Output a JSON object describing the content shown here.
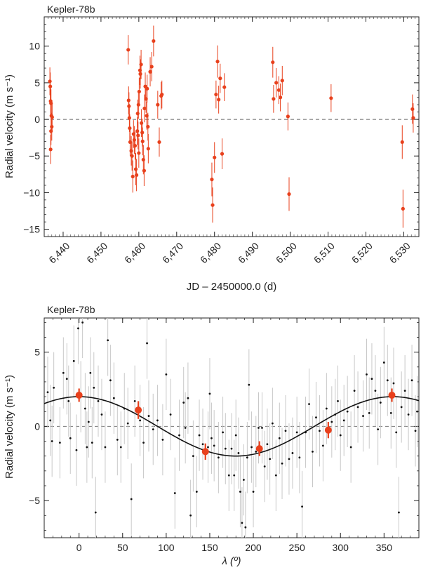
{
  "chart_data": [
    {
      "type": "scatter",
      "title": "Kepler-78b",
      "xlabel": "JD – 2450000.0 (d)",
      "ylabel": "Radial velocity (m s⁻¹)",
      "xlim": [
        6435,
        6534
      ],
      "ylim": [
        -16,
        14
      ],
      "xticks": [
        6440,
        6450,
        6460,
        6470,
        6480,
        6490,
        6500,
        6510,
        6520,
        6530
      ],
      "xtick_labels": [
        "6,440",
        "6,450",
        "6,460",
        "6,470",
        "6,480",
        "6,490",
        "6,500",
        "6,510",
        "6,520",
        "6,530"
      ],
      "yticks": [
        -15,
        -10,
        -5,
        0,
        5,
        10
      ],
      "ytick_labels": [
        "−15",
        "−10",
        "−5",
        "0",
        "5",
        "10"
      ],
      "zero_line": true,
      "marker_color": "#e8401c",
      "series": [
        {
          "name": "Radial velocity",
          "points": [
            [
              6436.5,
              5.2,
              1.9
            ],
            [
              6436.6,
              4.5,
              1.9
            ],
            [
              6436.7,
              2.5,
              1.9
            ],
            [
              6436.8,
              2.2,
              1.9
            ],
            [
              6436.9,
              0.5,
              1.9
            ],
            [
              6437.0,
              -1.0,
              1.9
            ],
            [
              6436.8,
              -1.6,
              1.9
            ],
            [
              6436.7,
              -4.1,
              2.0
            ],
            [
              6437.1,
              0.3,
              1.9
            ],
            [
              6457.2,
              9.5,
              2.0
            ],
            [
              6457.3,
              2.6,
              1.9
            ],
            [
              6457.4,
              1.8,
              1.9
            ],
            [
              6457.5,
              0.2,
              1.9
            ],
            [
              6457.6,
              -1.2,
              1.9
            ],
            [
              6457.7,
              -3.1,
              1.9
            ],
            [
              6458.0,
              -4.3,
              2.0
            ],
            [
              6458.2,
              -5.0,
              2.0
            ],
            [
              6458.4,
              -7.8,
              2.2
            ],
            [
              6458.6,
              -2.0,
              1.9
            ],
            [
              6458.8,
              -2.8,
              1.9
            ],
            [
              6459.0,
              -3.6,
              1.9
            ],
            [
              6459.2,
              -6.8,
              2.2
            ],
            [
              6459.4,
              -7.6,
              2.2
            ],
            [
              6459.6,
              -1.6,
              1.9
            ],
            [
              6459.8,
              -2.2,
              1.9
            ],
            [
              6460.0,
              -4.6,
              2.0
            ],
            [
              6459.7,
              0.8,
              1.9
            ],
            [
              6459.9,
              2.0,
              1.9
            ],
            [
              6460.1,
              3.8,
              1.9
            ],
            [
              6460.3,
              6.7,
              2.0
            ],
            [
              6460.4,
              6.2,
              2.0
            ],
            [
              6460.6,
              7.5,
              2.0
            ],
            [
              6460.7,
              -0.5,
              1.9
            ],
            [
              6460.9,
              -1.8,
              1.9
            ],
            [
              6461.0,
              -3.0,
              1.9
            ],
            [
              6461.2,
              -5.5,
              2.0
            ],
            [
              6461.4,
              -7.0,
              2.1
            ],
            [
              6461.5,
              1.5,
              1.9
            ],
            [
              6461.7,
              4.5,
              1.9
            ],
            [
              6461.9,
              2.8,
              1.9
            ],
            [
              6462.1,
              0.5,
              1.9
            ],
            [
              6462.2,
              4.2,
              1.9
            ],
            [
              6462.4,
              -1.0,
              1.9
            ],
            [
              6462.5,
              -4.0,
              2.0
            ],
            [
              6463.0,
              6.5,
              2.0
            ],
            [
              6463.4,
              7.2,
              2.0
            ],
            [
              6463.9,
              10.7,
              2.1
            ],
            [
              6465.0,
              2.0,
              1.9
            ],
            [
              6465.4,
              -3.1,
              2.0
            ],
            [
              6465.9,
              3.2,
              1.9
            ],
            [
              6466.1,
              3.4,
              1.9
            ],
            [
              6479.3,
              -8.2,
              2.3
            ],
            [
              6479.5,
              -11.7,
              2.4
            ],
            [
              6480.0,
              -5.2,
              2.1
            ],
            [
              6480.4,
              3.4,
              1.9
            ],
            [
              6480.8,
              7.9,
              2.2
            ],
            [
              6481.1,
              2.7,
              1.9
            ],
            [
              6481.5,
              5.6,
              2.0
            ],
            [
              6482.0,
              -4.7,
              2.1
            ],
            [
              6482.6,
              4.4,
              1.9
            ],
            [
              6495.4,
              7.8,
              2.1
            ],
            [
              6495.6,
              2.8,
              1.9
            ],
            [
              6496.3,
              5.0,
              2.0
            ],
            [
              6497.0,
              4.0,
              1.9
            ],
            [
              6497.4,
              3.0,
              1.9
            ],
            [
              6497.9,
              5.3,
              2.0
            ],
            [
              6499.4,
              0.4,
              1.9
            ],
            [
              6499.7,
              -10.2,
              2.3
            ],
            [
              6510.8,
              2.9,
              1.9
            ],
            [
              6529.6,
              -3.1,
              2.3
            ],
            [
              6529.8,
              -12.2,
              2.6
            ],
            [
              6532.3,
              1.4,
              2.0
            ],
            [
              6532.5,
              0.2,
              2.0
            ]
          ]
        }
      ]
    },
    {
      "type": "scatter",
      "title": "Kepler-78b",
      "xlabel": "λ (º)",
      "ylabel": "Radial velocity (m s⁻¹)",
      "xlim": [
        -40,
        390
      ],
      "ylim": [
        -7.5,
        7.3
      ],
      "xticks": [
        0,
        50,
        100,
        150,
        200,
        250,
        300,
        350
      ],
      "xtick_labels": [
        "0",
        "50",
        "100",
        "150",
        "200",
        "250",
        "300",
        "350"
      ],
      "yticks": [
        -5,
        0,
        5
      ],
      "ytick_labels": [
        "−5",
        "0",
        "5"
      ],
      "zero_line": true,
      "model": {
        "type": "sine",
        "amplitude": 2.0,
        "phase_deg": 0
      },
      "binned_color": "#e8401c",
      "binned": [
        [
          0,
          2.1,
          0.45
        ],
        [
          68,
          1.1,
          0.6
        ],
        [
          145,
          -1.7,
          0.55
        ],
        [
          207,
          -1.5,
          0.5
        ],
        [
          286,
          -0.25,
          0.55
        ],
        [
          359,
          2.1,
          0.45
        ]
      ],
      "individual": [
        [
          -36,
          2.3
        ],
        [
          -33,
          0.4
        ],
        [
          -31,
          -1.0
        ],
        [
          -29,
          2.6
        ],
        [
          -22,
          -1.1
        ],
        [
          -18,
          3.6
        ],
        [
          -14,
          3.2
        ],
        [
          -12,
          1.7
        ],
        [
          -10,
          -0.8
        ],
        [
          -6,
          4.4
        ],
        [
          -3,
          -1.6
        ],
        [
          -1,
          6.6
        ],
        [
          2,
          2.0
        ],
        [
          4,
          7.0
        ],
        [
          7,
          1.2
        ],
        [
          9,
          -1.4
        ],
        [
          11,
          0.3
        ],
        [
          13,
          3.6
        ],
        [
          15,
          -1.1
        ],
        [
          17,
          2.6
        ],
        [
          19,
          -5.8
        ],
        [
          22,
          1.7
        ],
        [
          26,
          0.8
        ],
        [
          30,
          -1.4
        ],
        [
          33,
          5.8
        ],
        [
          36,
          3.1
        ],
        [
          40,
          1.9
        ],
        [
          44,
          -0.9
        ],
        [
          48,
          -1.4
        ],
        [
          52,
          1.2
        ],
        [
          56,
          0.2
        ],
        [
          60,
          -4.9
        ],
        [
          64,
          1.7
        ],
        [
          70,
          0.4
        ],
        [
          74,
          -1.1
        ],
        [
          78,
          5.6
        ],
        [
          80,
          0.7
        ],
        [
          85,
          -0.2
        ],
        [
          90,
          0.4
        ],
        [
          96,
          -0.9
        ],
        [
          100,
          3.5
        ],
        [
          105,
          0.8
        ],
        [
          110,
          -4.5
        ],
        [
          115,
          -0.6
        ],
        [
          120,
          1.6
        ],
        [
          122,
          -0.1
        ],
        [
          125,
          1.9
        ],
        [
          128,
          -6.0
        ],
        [
          131,
          -2.0
        ],
        [
          135,
          -4.4
        ],
        [
          138,
          -0.6
        ],
        [
          142,
          -1.2
        ],
        [
          148,
          -1.4
        ],
        [
          150,
          2.2
        ],
        [
          152,
          -0.8
        ],
        [
          155,
          -1.3
        ],
        [
          160,
          -2.1
        ],
        [
          165,
          -0.4
        ],
        [
          168,
          -1.5
        ],
        [
          172,
          -3.3
        ],
        [
          175,
          -1.5
        ],
        [
          178,
          -3.3
        ],
        [
          180,
          -0.6
        ],
        [
          183,
          -1.8
        ],
        [
          185,
          -4.4
        ],
        [
          187,
          -6.5
        ],
        [
          189,
          -3.6
        ],
        [
          191,
          -6.8
        ],
        [
          193,
          -2.1
        ],
        [
          195,
          2.8
        ],
        [
          198,
          -1.4
        ],
        [
          200,
          -4.4
        ],
        [
          203,
          -1.7
        ],
        [
          206,
          -0.1
        ],
        [
          210,
          -0.1
        ],
        [
          213,
          -2.7
        ],
        [
          216,
          -1.2
        ],
        [
          219,
          -2.2
        ],
        [
          222,
          0.2
        ],
        [
          226,
          -3.3
        ],
        [
          230,
          -0.8
        ],
        [
          233,
          -2.5
        ],
        [
          237,
          -0.3
        ],
        [
          241,
          -2.2
        ],
        [
          245,
          -1.8
        ],
        [
          250,
          -0.4
        ],
        [
          253,
          -2.1
        ],
        [
          256,
          -5.4
        ],
        [
          260,
          -0.4
        ],
        [
          264,
          1.5
        ],
        [
          268,
          -1.7
        ],
        [
          272,
          0.6
        ],
        [
          276,
          -0.3
        ],
        [
          280,
          -1.3
        ],
        [
          284,
          1.2
        ],
        [
          290,
          0.3
        ],
        [
          294,
          0.8
        ],
        [
          297,
          1.7
        ],
        [
          300,
          -0.6
        ],
        [
          304,
          0.4
        ],
        [
          308,
          1.0
        ],
        [
          312,
          -1.4
        ],
        [
          316,
          2.4
        ],
        [
          320,
          1.3
        ],
        [
          326,
          0.7
        ],
        [
          330,
          3.5
        ],
        [
          333,
          0.9
        ],
        [
          336,
          3.2
        ],
        [
          340,
          2.4
        ],
        [
          343,
          -0.2
        ],
        [
          346,
          1.6
        ],
        [
          350,
          4.3
        ],
        [
          354,
          3.1
        ],
        [
          358,
          0.9
        ],
        [
          361,
          2.9
        ],
        [
          364,
          -0.4
        ],
        [
          367,
          -5.8
        ],
        [
          370,
          1.3
        ],
        [
          374,
          2.4
        ],
        [
          378,
          0.8
        ],
        [
          382,
          3.1
        ],
        [
          386,
          -0.3
        ],
        [
          388,
          1.0
        ]
      ]
    }
  ]
}
